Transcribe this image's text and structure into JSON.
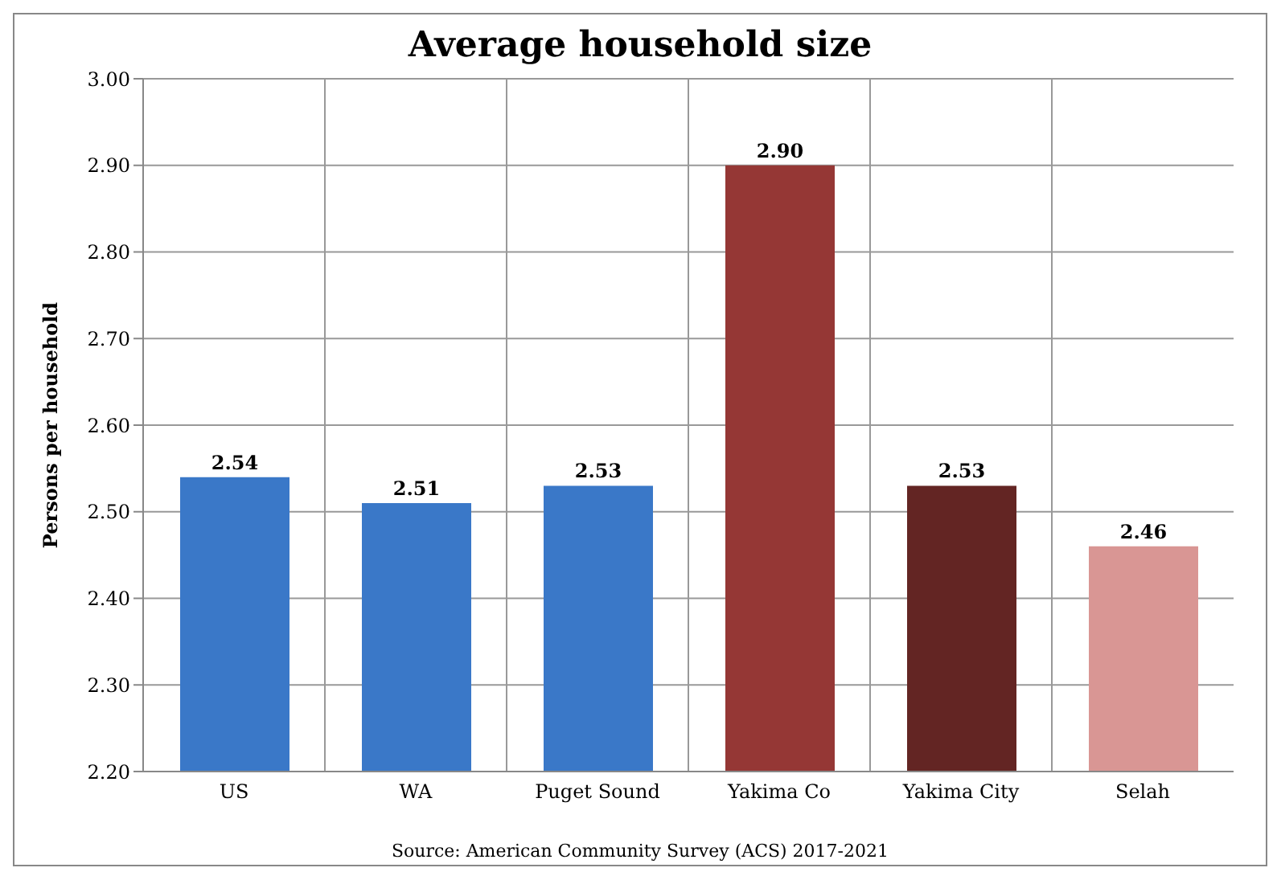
{
  "chart_data": {
    "type": "bar",
    "title": "Average household size",
    "ylabel": "Persons per household",
    "categories": [
      "US",
      "WA",
      "Puget Sound",
      "Yakima Co",
      "Yakima City",
      "Selah"
    ],
    "values": [
      2.54,
      2.51,
      2.53,
      2.9,
      2.53,
      2.46
    ],
    "colors": [
      "#3a78c8",
      "#3a78c8",
      "#3a78c8",
      "#953735",
      "#632523",
      "#d99694"
    ],
    "value_labels": [
      "2.54",
      "2.51",
      "2.53",
      "2.90",
      "2.53",
      "2.46"
    ],
    "ylim": [
      2.2,
      3.0
    ],
    "yticks": [
      {
        "value": 2.2,
        "label": "2.20"
      },
      {
        "value": 2.3,
        "label": "2.30"
      },
      {
        "value": 2.4,
        "label": "2.40"
      },
      {
        "value": 2.5,
        "label": "2.50"
      },
      {
        "value": 2.6,
        "label": "2.60"
      },
      {
        "value": 2.7,
        "label": "2.70"
      },
      {
        "value": 2.8,
        "label": "2.80"
      },
      {
        "value": 2.9,
        "label": "2.90"
      },
      {
        "value": 3.0,
        "label": "3.00"
      }
    ],
    "grid": true,
    "annotations": [
      "Source: American Community Survey (ACS) 2017-2021"
    ]
  }
}
